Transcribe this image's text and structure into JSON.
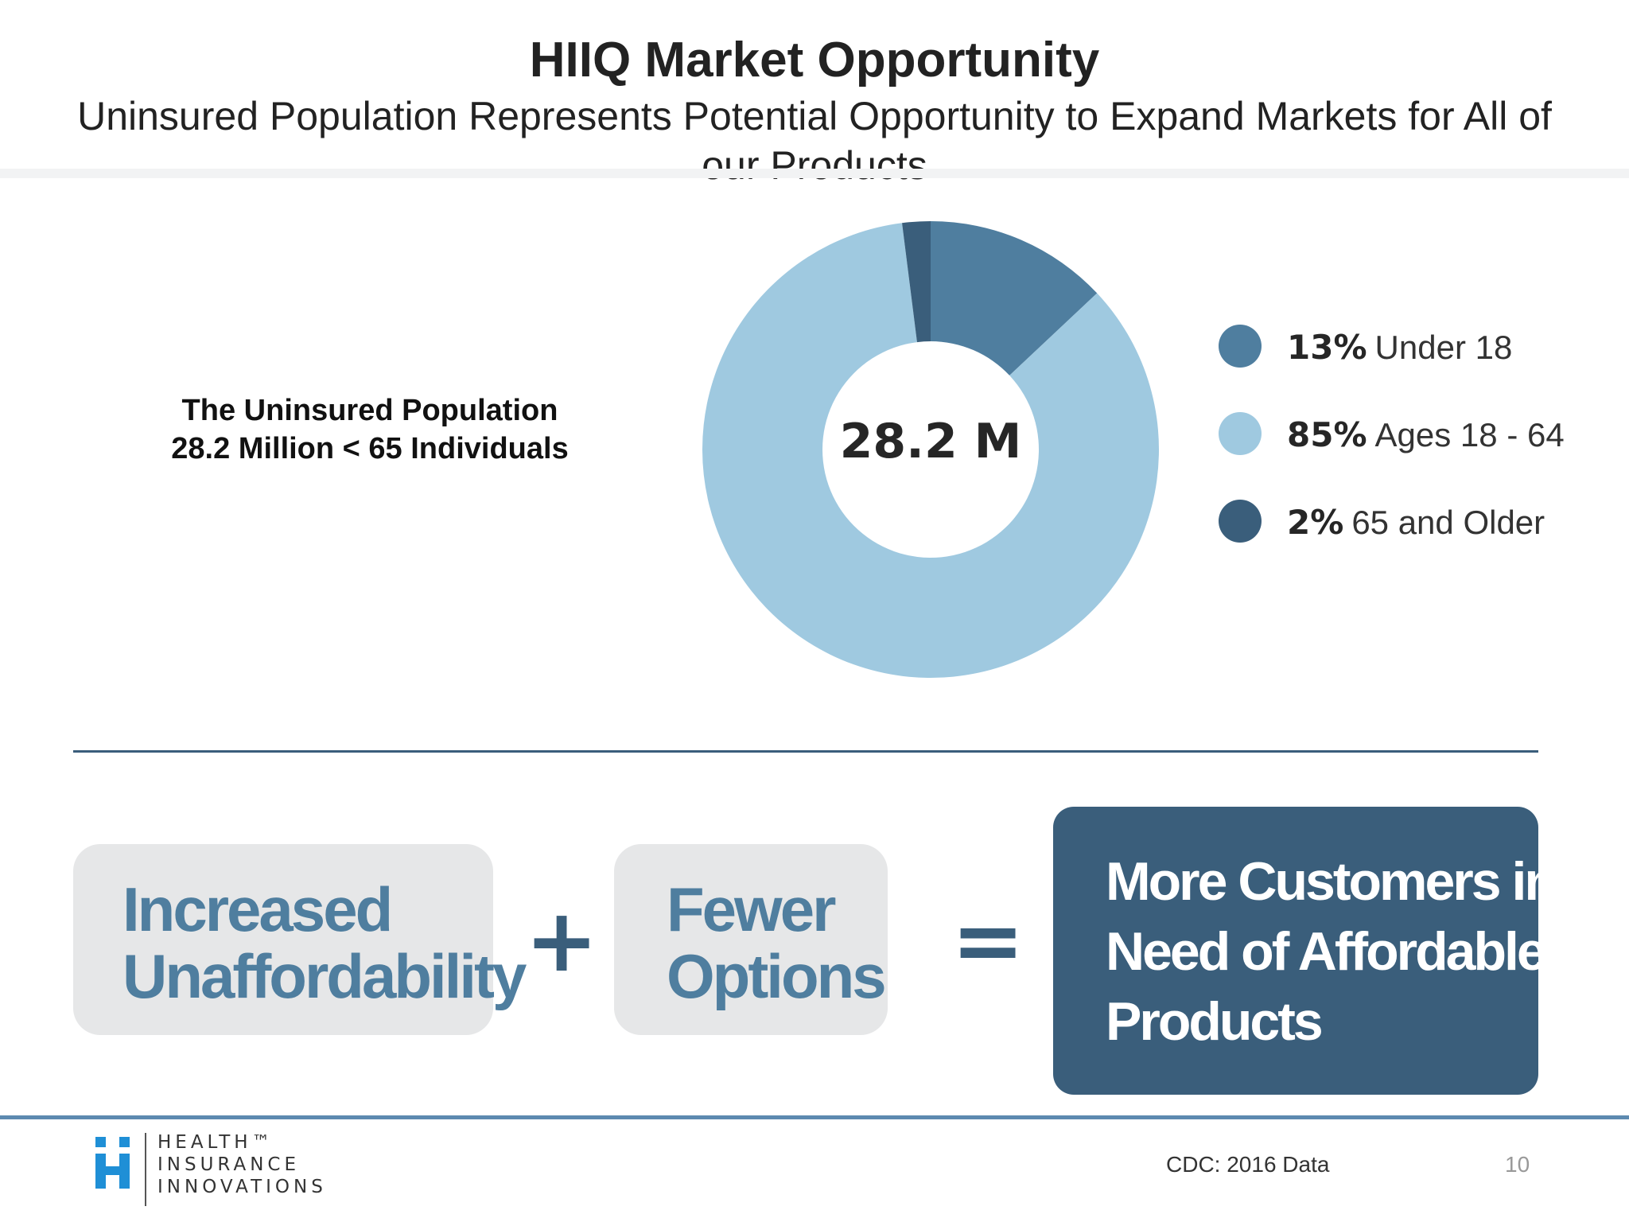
{
  "slide": {
    "title": "HIIQ Market Opportunity",
    "subtitle": "Uninsured Population Represents Potential Opportunity to Expand Markets for All of our Products"
  },
  "population_label": {
    "line1": "The Uninsured Population",
    "line2": "28.2 Million < 65 Individuals"
  },
  "chart_data": {
    "type": "pie",
    "variant": "donut",
    "center_label": "28.2 M",
    "slices": [
      {
        "pct_label": "13%",
        "label": "Under 18",
        "value": 13,
        "color": "#4f7e9f"
      },
      {
        "pct_label": "85%",
        "label": "Ages 18 - 64",
        "value": 85,
        "color": "#9fc9e0"
      },
      {
        "pct_label": "2%",
        "label": "65 and Older",
        "value": 2,
        "color": "#3a5e7b"
      }
    ],
    "legend_position": "right"
  },
  "equation": {
    "term1": {
      "line1": "Increased",
      "line2": "Unaffordability"
    },
    "plus": "+",
    "term2": {
      "line1": "Fewer",
      "line2": "Options"
    },
    "equals": "=",
    "result": {
      "line1": "More Customers in",
      "line2": "Need of Affordable",
      "line3": "Products"
    }
  },
  "footer": {
    "logo": {
      "line1": "HEALTH™",
      "line2": "INSURANCE",
      "line3": "INNOVATIONS"
    },
    "source": "CDC: 2016 Data",
    "page_number": "10"
  },
  "colors": {
    "dark_blue": "#3a5e7b",
    "mid_blue": "#4f7e9f",
    "light_blue": "#9fc9e0",
    "logo_blue": "#1f8fd6",
    "box_gray": "#e6e7e8"
  }
}
